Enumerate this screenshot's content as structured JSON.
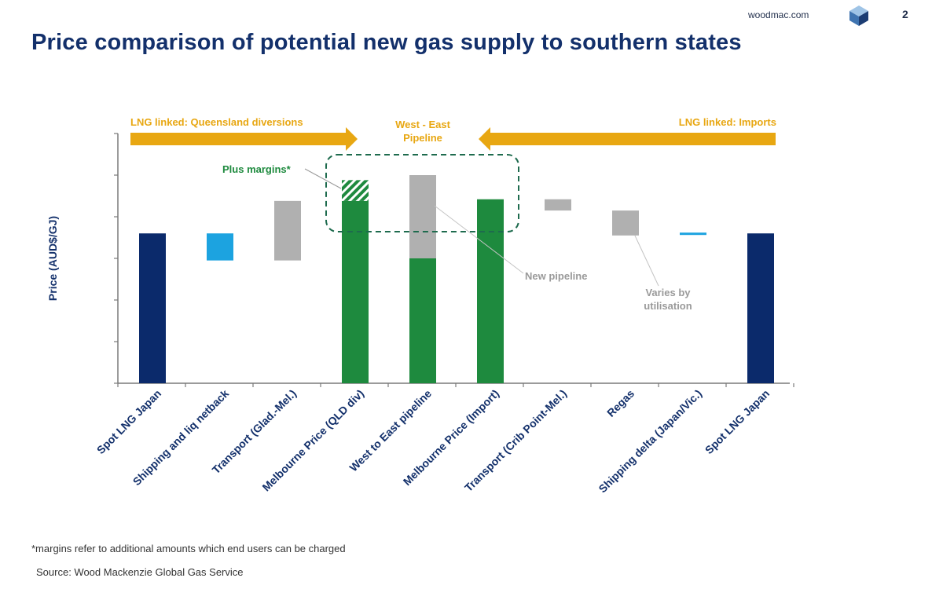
{
  "header": {
    "brand": "woodmac.com",
    "page_number": "2",
    "title": "Price comparison of potential new gas supply to southern states"
  },
  "chart_data": {
    "type": "waterfall",
    "ylabel": "Price (AUD$/GJ)",
    "ylim": [
      0,
      6
    ],
    "y_tick_labels_shown": false,
    "categories": [
      "Spot LNG Japan",
      "Shipping and liq netback",
      "Transport (Glad.-Mel.)",
      "Melbourne Price (QLD div)",
      "West to East pipeline",
      "Melbourne Price (Import)",
      "Transport (Crib Point-Mel.)",
      "Regas",
      "Shipping delta (Japan/Vic.)",
      "Spot LNG Japan"
    ],
    "bars": [
      {
        "kind": "total",
        "start": 0,
        "end": 3.6,
        "color": "#0b2a6b"
      },
      {
        "kind": "change",
        "start": 2.95,
        "end": 3.6,
        "color": "#1ca3e0"
      },
      {
        "kind": "change",
        "start": 2.95,
        "end": 4.38,
        "color": "#b0b0b0"
      },
      {
        "kind": "total",
        "start": 0,
        "end": 4.38,
        "color": "#1e8a3e",
        "hatched_top": 0.5
      },
      {
        "kind": "stacked",
        "segments": [
          {
            "start": 0,
            "end": 3.0,
            "color": "#1e8a3e"
          },
          {
            "start": 3.0,
            "end": 5.0,
            "color": "#b0b0b0"
          }
        ]
      },
      {
        "kind": "total",
        "start": 0,
        "end": 4.42,
        "color": "#1e8a3e"
      },
      {
        "kind": "change",
        "start": 4.15,
        "end": 4.42,
        "color": "#b0b0b0"
      },
      {
        "kind": "change",
        "start": 3.55,
        "end": 4.15,
        "color": "#b0b0b0"
      },
      {
        "kind": "change",
        "start": 3.55,
        "end": 3.6,
        "color": "#1ca3e0"
      },
      {
        "kind": "total",
        "start": 0,
        "end": 3.6,
        "color": "#0b2a6b"
      }
    ],
    "annotations": {
      "left_arrow_label": "LNG linked: Queensland diversions",
      "center_label_1": "West - East",
      "center_label_2": "Pipeline",
      "right_arrow_label": "LNG linked: Imports",
      "plus_margins": "Plus margins*",
      "new_pipeline": "New pipeline",
      "varies_1": "Varies by",
      "varies_2": "utilisation"
    },
    "colors": {
      "arrow": "#e8a712",
      "dashed_box": "#1e6b4e",
      "green_label": "#1e8a3e",
      "gray_label": "#9a9a9a"
    }
  },
  "footer": {
    "footnote": "*margins refer to additional amounts which end users can be charged",
    "source": "Source: Wood Mackenzie Global Gas Service"
  }
}
